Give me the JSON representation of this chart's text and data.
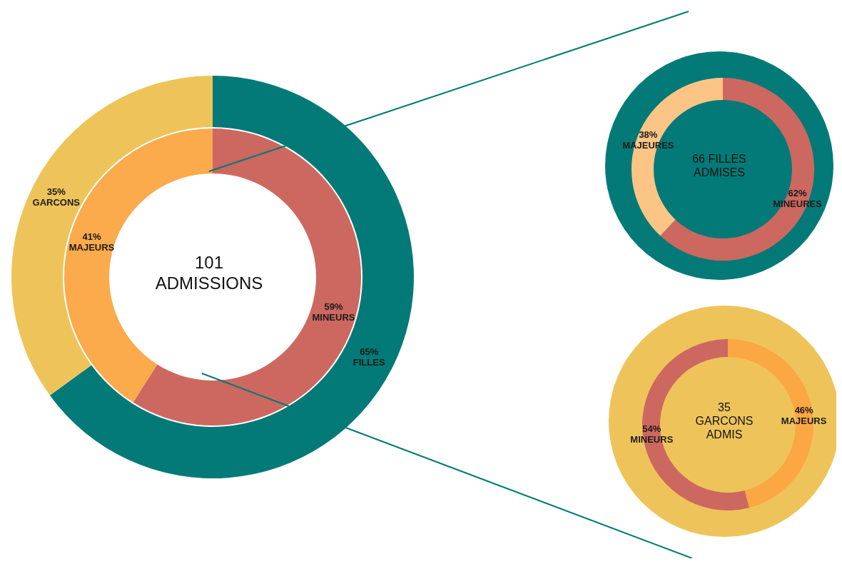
{
  "chart_data": [
    {
      "type": "donut",
      "categories": [
        "FILLES",
        "GARCONS"
      ],
      "values": [
        65,
        35
      ],
      "colors": [
        "#037a77",
        "#eec45a"
      ],
      "value_labels": [
        "65%",
        "35%"
      ]
    },
    {
      "type": "donut",
      "title": "101 ADMISSIONS",
      "categories": [
        "MINEURS",
        "MAJEURS"
      ],
      "values": [
        59,
        41
      ],
      "colors": [
        "#cd6860",
        "#fbaa4c"
      ],
      "value_labels": [
        "59%",
        "41%"
      ]
    },
    {
      "type": "donut",
      "title": "66 FILLES ADMISES",
      "categories": [
        "MINEURES",
        "MAJEURES"
      ],
      "values": [
        62,
        38
      ],
      "colors": [
        "#cd6860",
        "#fdc585"
      ],
      "value_labels": [
        "62%",
        "38%"
      ]
    },
    {
      "type": "donut",
      "title": "35 GARCONS ADMIS",
      "categories": [
        "MAJEURS",
        "MINEURS"
      ],
      "values": [
        46,
        54
      ],
      "colors": [
        "#fba743",
        "#cd6860"
      ],
      "value_labels": [
        "46%",
        "54%"
      ]
    }
  ]
}
